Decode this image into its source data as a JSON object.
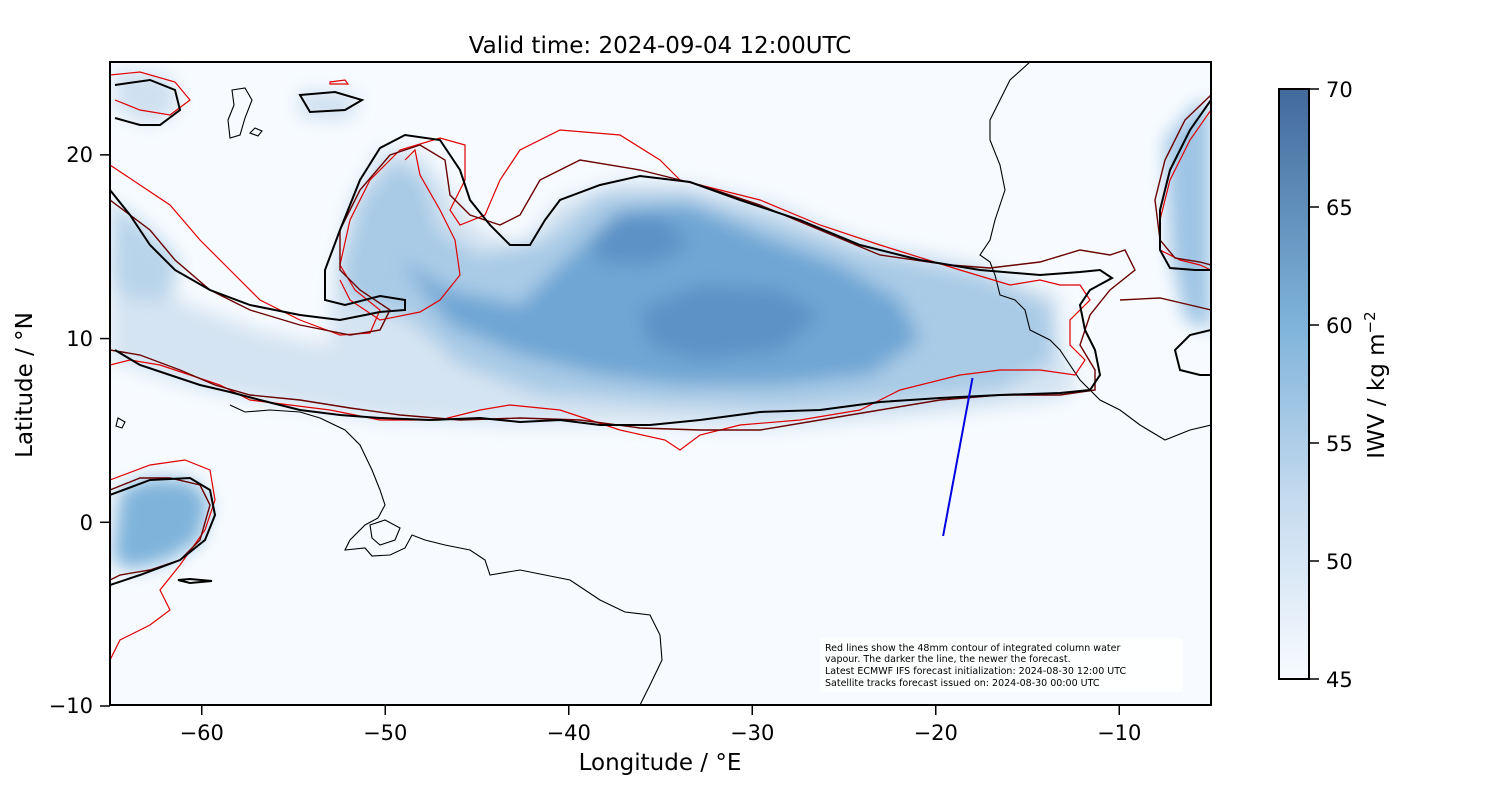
{
  "title": "Valid time: 2024-09-04 12:00UTC",
  "x_axis": {
    "label": "Longitude / °E",
    "ticks": [
      "−60",
      "−50",
      "−40",
      "−30",
      "−20",
      "−10"
    ]
  },
  "y_axis": {
    "label": "Latitude / °N",
    "ticks": [
      "20",
      "10",
      "0",
      "−10"
    ]
  },
  "colorbar": {
    "label": "IWV / kg m",
    "label_exponent": "−2",
    "ticks": [
      "70",
      "65",
      "60",
      "55",
      "50",
      "45"
    ],
    "range": [
      45,
      70
    ],
    "colors": {
      "low": "#f7fbff",
      "mid": "#7fb3da",
      "high": "#426a9b"
    }
  },
  "note": {
    "lines": [
      "Red lines show the 48mm contour of integrated column water",
      "vapour. The darker the line, the newer the forecast.",
      "Latest ECMWF IFS forecast initialization: 2024-08-30 12:00 UTC",
      "Satellite tracks forecast issued on: 2024-08-30 00:00 UTC"
    ]
  },
  "map": {
    "lon_range": [
      -65,
      -5
    ],
    "lat_range": [
      -10,
      25
    ],
    "contour_level_mm": 48,
    "contour_colors": {
      "oldest": "#e00000",
      "older": "#6b0000",
      "newest": "#000000"
    },
    "satellite_track_color": "#0000e0",
    "satellite_track": {
      "lon": [
        -19.6,
        -18.0
      ],
      "lat": [
        -0.8,
        7.8
      ]
    }
  }
}
